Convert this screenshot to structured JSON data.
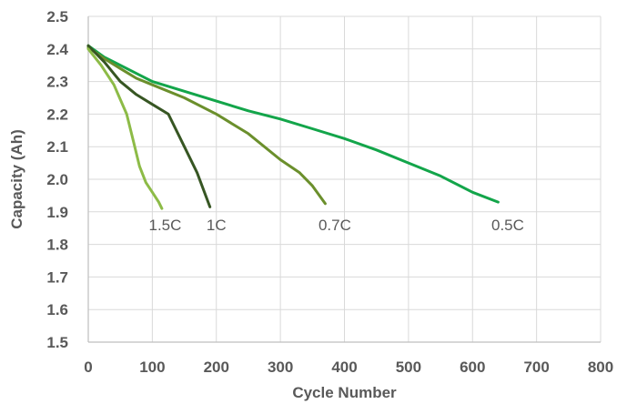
{
  "chart_data": {
    "type": "line",
    "xlabel": "Cycle Number",
    "ylabel": "Capacity (Ah)",
    "xlim": [
      0,
      800
    ],
    "ylim": [
      1.5,
      2.5
    ],
    "x_ticks": [
      "0",
      "100",
      "200",
      "300",
      "400",
      "500",
      "600",
      "700",
      "800"
    ],
    "y_ticks": [
      "2.5",
      "2.4",
      "2.3",
      "2.2",
      "2.1",
      "2.0",
      "1.9",
      "1.8",
      "1.7",
      "1.6",
      "1.5"
    ],
    "grid": true,
    "series": [
      {
        "name": "0.5C",
        "color": "#13a54a",
        "x": [
          0,
          25,
          50,
          100,
          150,
          200,
          250,
          300,
          350,
          400,
          450,
          500,
          550,
          600,
          640
        ],
        "y": [
          2.41,
          2.375,
          2.35,
          2.3,
          2.27,
          2.24,
          2.21,
          2.185,
          2.155,
          2.125,
          2.09,
          2.05,
          2.01,
          1.96,
          1.93
        ]
      },
      {
        "name": "0.7C",
        "color": "#6b8f2c",
        "x": [
          0,
          25,
          50,
          75,
          100,
          150,
          200,
          250,
          300,
          330,
          350,
          370
        ],
        "y": [
          2.405,
          2.37,
          2.34,
          2.31,
          2.29,
          2.25,
          2.2,
          2.14,
          2.06,
          2.02,
          1.98,
          1.925
        ]
      },
      {
        "name": "1C",
        "color": "#375623",
        "x": [
          0,
          25,
          50,
          75,
          100,
          125,
          150,
          170,
          190
        ],
        "y": [
          2.41,
          2.36,
          2.3,
          2.26,
          2.23,
          2.2,
          2.1,
          2.02,
          1.915
        ]
      },
      {
        "name": "1.5C",
        "color": "#8dbb47",
        "x": [
          0,
          20,
          40,
          60,
          70,
          80,
          90,
          100,
          110,
          115
        ],
        "y": [
          2.4,
          2.35,
          2.29,
          2.2,
          2.12,
          2.04,
          1.99,
          1.96,
          1.93,
          1.91
        ]
      }
    ],
    "series_labels": [
      {
        "text": "1.5C",
        "x": 120,
        "y": 1.86
      },
      {
        "text": "1C",
        "x": 200,
        "y": 1.86
      },
      {
        "text": "0.7C",
        "x": 385,
        "y": 1.86
      },
      {
        "text": "0.5C",
        "x": 655,
        "y": 1.86
      }
    ]
  }
}
